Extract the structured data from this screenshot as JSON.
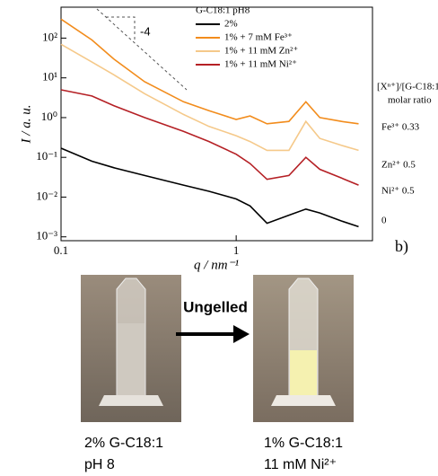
{
  "chart_data": {
    "type": "line",
    "xscale": "log",
    "yscale": "log",
    "x_label": "q / nm⁻¹",
    "y_label": "I / a. u.",
    "legend_title": "G-C18:1   pH8",
    "ratio_header": "[Xⁿ⁺]/[G-C18:1]",
    "ratio_subheader": "molar ratio",
    "annotation": "-4",
    "x": [
      0.1,
      0.15,
      0.2,
      0.3,
      0.5,
      0.7,
      1.0,
      1.2,
      1.5,
      2.0,
      2.5,
      3.0,
      4.0,
      5.0
    ],
    "series": [
      {
        "name": "2%",
        "color": "#000000",
        "ratio_label": "0",
        "values": [
          0.17,
          0.08,
          0.055,
          0.035,
          0.02,
          0.014,
          0.009,
          0.006,
          0.0022,
          0.0035,
          0.005,
          0.004,
          0.0025,
          0.0018
        ]
      },
      {
        "name": "1%   +   7 mM Fe³⁺",
        "color": "#f28c1c",
        "ratio_label": "Fe³⁺ 0.33",
        "values": [
          300,
          90,
          30,
          8,
          2.5,
          1.5,
          0.9,
          1.1,
          0.7,
          0.8,
          2.5,
          1.0,
          0.8,
          0.7
        ]
      },
      {
        "name": "1%   +   11 mM Zn²⁺",
        "color": "#f5c98a",
        "ratio_label": "Zn²⁺ 0.5",
        "values": [
          70,
          25,
          12,
          4,
          1.2,
          0.6,
          0.35,
          0.25,
          0.15,
          0.15,
          0.8,
          0.3,
          0.2,
          0.15
        ]
      },
      {
        "name": "1%   +   11 mM Ni²⁺",
        "color": "#b52025",
        "ratio_label": "Ni²⁺ 0.5",
        "values": [
          5,
          3.5,
          2,
          1.0,
          0.45,
          0.25,
          0.12,
          0.07,
          0.028,
          0.035,
          0.1,
          0.05,
          0.03,
          0.02
        ]
      }
    ],
    "xlim": [
      0.1,
      6
    ],
    "ylim": [
      0.0008,
      600
    ],
    "xticks": [
      0.1,
      1
    ],
    "yticks": [
      {
        "value": 0.001,
        "label": "10⁻³"
      },
      {
        "value": 0.01,
        "label": "10⁻²"
      },
      {
        "value": 0.1,
        "label": "10⁻¹"
      },
      {
        "value": 1,
        "label": "10⁰"
      },
      {
        "value": 10,
        "label": "10¹"
      },
      {
        "value": 100,
        "label": "10²"
      }
    ]
  },
  "panel_label": "b)",
  "photos": {
    "arrow_label": "Ungelled",
    "left": {
      "line1": "2% G-C18:1",
      "line2": "pH 8"
    },
    "right": {
      "line1": "1% G-C18:1",
      "line2": "11 mM Ni²⁺"
    }
  }
}
